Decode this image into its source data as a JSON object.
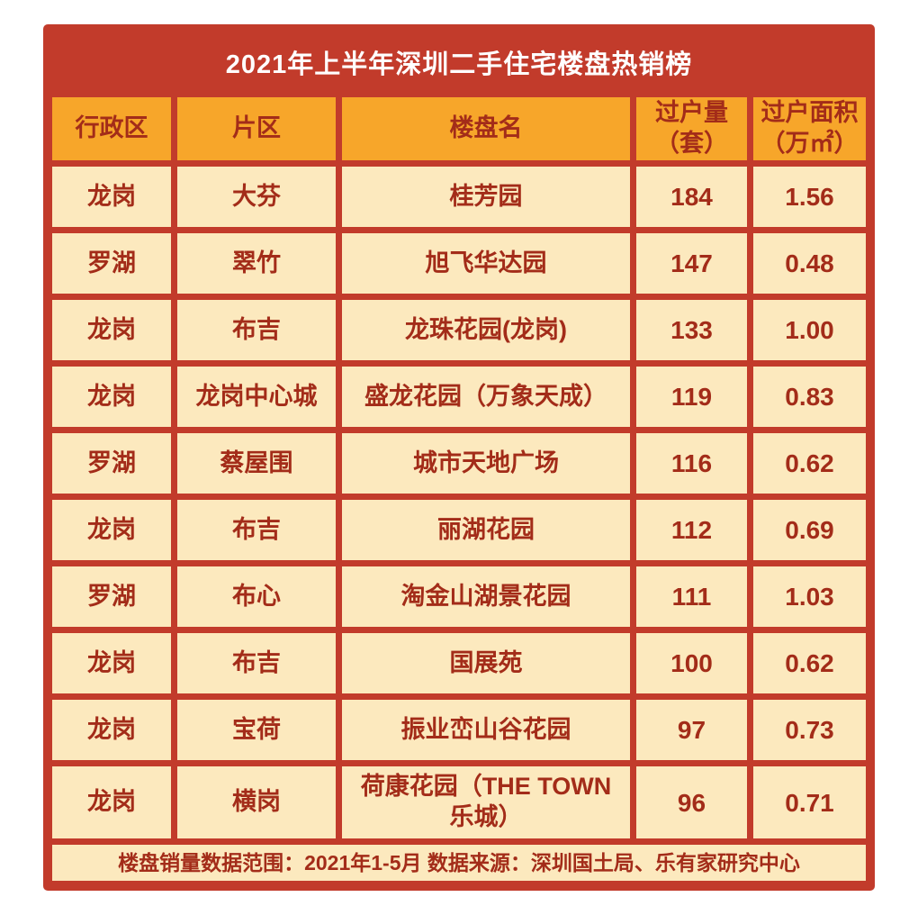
{
  "title": "2021年上半年深圳二手住宅楼盘热销榜",
  "colors": {
    "frame_red": "#C23B2B",
    "header_orange": "#F7A62A",
    "cell_cream": "#FCE9BE",
    "text_dark_red": "#A32C19",
    "title_text": "#FFFFFF"
  },
  "table": {
    "headers": [
      "行政区",
      "片区",
      "楼盘名",
      "过户量\n（套）",
      "过户面积\n（万㎡）"
    ],
    "rows": [
      [
        "龙岗",
        "大芬",
        "桂芳园",
        "184",
        "1.56"
      ],
      [
        "罗湖",
        "翠竹",
        "旭飞华达园",
        "147",
        "0.48"
      ],
      [
        "龙岗",
        "布吉",
        "龙珠花园(龙岗)",
        "133",
        "1.00"
      ],
      [
        "龙岗",
        "龙岗中心城",
        "盛龙花园（万象天成）",
        "119",
        "0.83"
      ],
      [
        "罗湖",
        "蔡屋围",
        "城市天地广场",
        "116",
        "0.62"
      ],
      [
        "龙岗",
        "布吉",
        "丽湖花园",
        "112",
        "0.69"
      ],
      [
        "罗湖",
        "布心",
        "淘金山湖景花园",
        "111",
        "1.03"
      ],
      [
        "龙岗",
        "布吉",
        "国展苑",
        "100",
        "0.62"
      ],
      [
        "龙岗",
        "宝荷",
        "振业峦山谷花园",
        "97",
        "0.73"
      ],
      [
        "龙岗",
        "横岗",
        "荷康花园（THE TOWN 乐城）",
        "96",
        "0.71"
      ]
    ],
    "footnote": "楼盘销量数据范围：2021年1-5月 数据来源：深圳国土局、乐有家研究中心"
  },
  "chart_data": {
    "type": "table",
    "title": "2021年上半年深圳二手住宅楼盘热销榜",
    "columns": [
      "行政区",
      "片区",
      "楼盘名",
      "过户量（套）",
      "过户面积（万㎡）"
    ],
    "rows": [
      [
        "龙岗",
        "大芬",
        "桂芳园",
        184,
        1.56
      ],
      [
        "罗湖",
        "翠竹",
        "旭飞华达园",
        147,
        0.48
      ],
      [
        "龙岗",
        "布吉",
        "龙珠花园(龙岗)",
        133,
        1.0
      ],
      [
        "龙岗",
        "龙岗中心城",
        "盛龙花园（万象天成）",
        119,
        0.83
      ],
      [
        "罗湖",
        "蔡屋围",
        "城市天地广场",
        116,
        0.62
      ],
      [
        "龙岗",
        "布吉",
        "丽湖花园",
        112,
        0.69
      ],
      [
        "罗湖",
        "布心",
        "淘金山湖景花园",
        111,
        1.03
      ],
      [
        "龙岗",
        "布吉",
        "国展苑",
        100,
        0.62
      ],
      [
        "龙岗",
        "宝荷",
        "振业峦山谷花园",
        97,
        0.73
      ],
      [
        "龙岗",
        "横岗",
        "荷康花园（THE TOWN 乐城）",
        96,
        0.71
      ]
    ],
    "footnote": "楼盘销量数据范围：2021年1-5月 数据来源：深圳国土局、乐有家研究中心"
  }
}
